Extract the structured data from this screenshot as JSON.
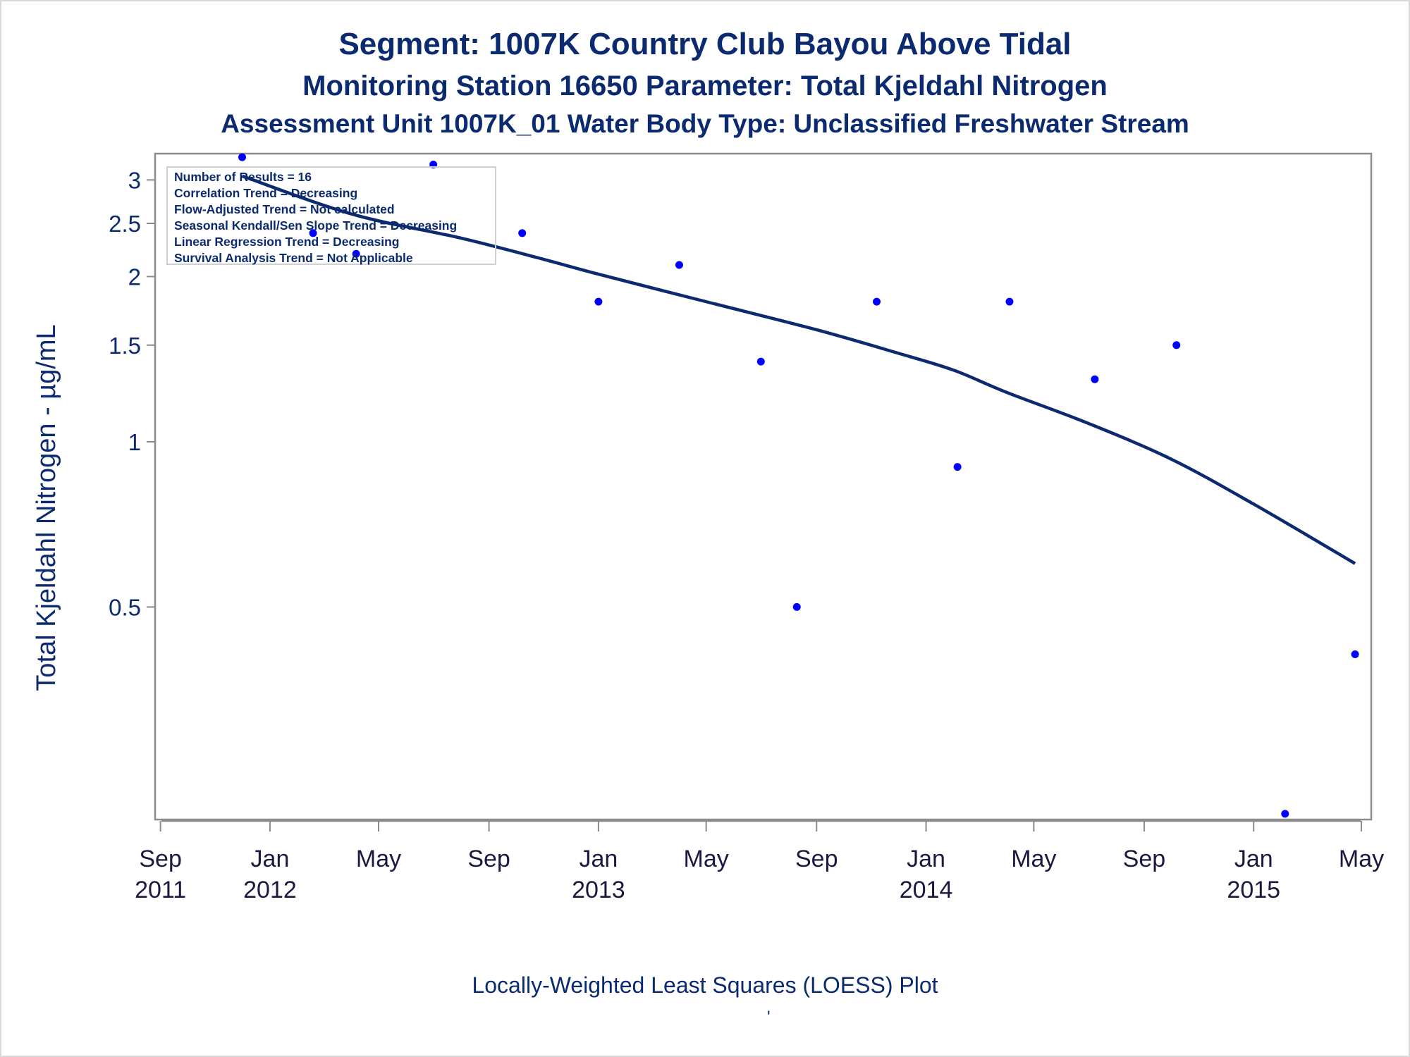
{
  "title": "Segment: 1007K  Country Club Bayou Above Tidal",
  "subtitle1": "Monitoring Station 16650 Parameter: Total Kjeldahl Nitrogen",
  "subtitle2": "Assessment Unit 1007K_01   Water Body Type: Unclassified Freshwater Stream",
  "footnote": "Locally-Weighted Least Squares (LOESS) Plot",
  "footnote_mark": "'",
  "stats": {
    "lines": [
      "Number of Results = 16",
      "Correlation Trend = Decreasing",
      "Flow-Adjusted Trend = Not calculated",
      "Seasonal Kendall/Sen Slope Trend = Decreasing",
      "Linear Regression Trend = Decreasing",
      "Survival Analysis Trend = Not Applicable"
    ]
  },
  "colors": {
    "title": "#0b2a6f",
    "points": "#0000ff",
    "loess": "#0b2a6f",
    "axis": "#8c8c8c"
  },
  "chart_data": {
    "type": "scatter",
    "ylabel": "Total Kjeldahl Nitrogen -  µg/mL",
    "y_scale": "log",
    "y_ticks": [
      0.5,
      1,
      1.5,
      2,
      2.5,
      3
    ],
    "y_tick_labels": [
      "0.5",
      "1",
      "1.5",
      "2",
      "2.5",
      "3"
    ],
    "ylim": [
      0.205,
      3.35
    ],
    "xlim": [
      "2011-08-26",
      "2015-05-12"
    ],
    "x_ticks": [
      "2011-09-01",
      "2012-01-01",
      "2012-05-01",
      "2012-09-01",
      "2013-01-01",
      "2013-05-01",
      "2013-09-01",
      "2014-01-01",
      "2014-05-01",
      "2014-09-01",
      "2015-01-01",
      "2015-05-01"
    ],
    "x_tick_labels": [
      [
        "Sep",
        "2011"
      ],
      [
        "Jan",
        "2012"
      ],
      [
        "May",
        ""
      ],
      [
        "Sep",
        ""
      ],
      [
        "Jan",
        "2013"
      ],
      [
        "May",
        ""
      ],
      [
        "Sep",
        ""
      ],
      [
        "Jan",
        "2014"
      ],
      [
        "May",
        ""
      ],
      [
        "Sep",
        ""
      ],
      [
        "Jan",
        "2015"
      ],
      [
        "May",
        ""
      ]
    ],
    "series": [
      {
        "type": "scatter",
        "points": [
          {
            "x": "2011-12-01",
            "y": 3.3
          },
          {
            "x": "2012-02-18",
            "y": 2.4
          },
          {
            "x": "2012-04-06",
            "y": 2.2
          },
          {
            "x": "2012-07-01",
            "y": 3.2
          },
          {
            "x": "2012-10-08",
            "y": 2.4
          },
          {
            "x": "2013-01-01",
            "y": 1.8
          },
          {
            "x": "2013-04-01",
            "y": 2.1
          },
          {
            "x": "2013-07-01",
            "y": 1.4
          },
          {
            "x": "2013-08-10",
            "y": 0.5
          },
          {
            "x": "2013-11-07",
            "y": 1.8
          },
          {
            "x": "2014-02-05",
            "y": 0.9
          },
          {
            "x": "2014-04-04",
            "y": 1.8
          },
          {
            "x": "2014-07-08",
            "y": 1.3
          },
          {
            "x": "2014-10-07",
            "y": 1.5
          },
          {
            "x": "2015-02-05",
            "y": 0.21
          },
          {
            "x": "2015-04-24",
            "y": 0.41
          }
        ]
      },
      {
        "type": "line",
        "points": [
          {
            "x": "2011-12-01",
            "y": 3.05
          },
          {
            "x": "2012-04-01",
            "y": 2.6
          },
          {
            "x": "2012-08-01",
            "y": 2.35
          },
          {
            "x": "2012-11-01",
            "y": 2.15
          },
          {
            "x": "2013-01-01",
            "y": 2.02
          },
          {
            "x": "2013-05-01",
            "y": 1.8
          },
          {
            "x": "2013-09-01",
            "y": 1.6
          },
          {
            "x": "2013-12-01",
            "y": 1.45
          },
          {
            "x": "2014-02-01",
            "y": 1.35
          },
          {
            "x": "2014-04-01",
            "y": 1.23
          },
          {
            "x": "2014-07-01",
            "y": 1.08
          },
          {
            "x": "2014-10-01",
            "y": 0.93
          },
          {
            "x": "2015-01-01",
            "y": 0.77
          },
          {
            "x": "2015-04-24",
            "y": 0.6
          }
        ]
      }
    ]
  }
}
